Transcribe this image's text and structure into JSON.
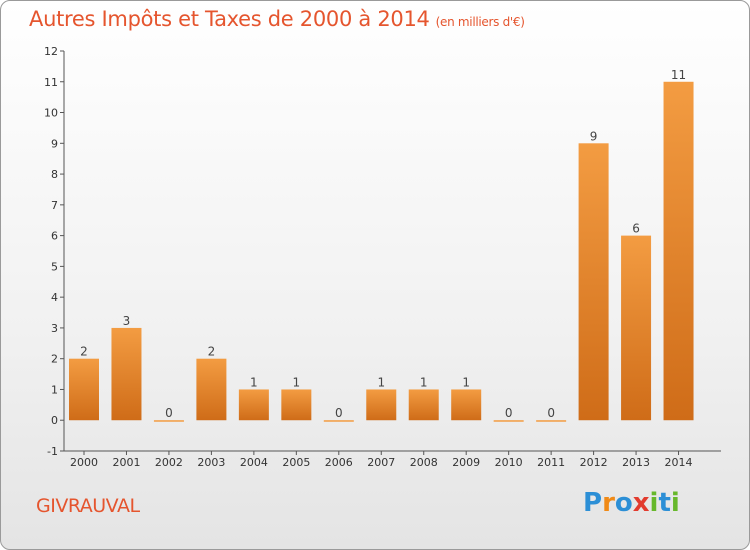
{
  "header": {
    "title": "Autres Impôts et Taxes de 2000 à 2014",
    "unit": "(en milliers d'€)"
  },
  "commune": "GIVRAUVAL",
  "logo": {
    "letters": [
      "P",
      "r",
      "o",
      "x",
      "i",
      "t",
      "i"
    ],
    "colors": [
      "#2c8fd6",
      "#f08a17",
      "#2c8fd6",
      "#e23b2e",
      "#67b82b",
      "#2c8fd6",
      "#67b82b"
    ]
  },
  "chart_data": {
    "type": "bar",
    "title": "Autres Impôts et Taxes de 2000 à 2014",
    "subtitle": "(en milliers d'€)",
    "categories": [
      "2000",
      "2001",
      "2002",
      "2003",
      "2004",
      "2005",
      "2006",
      "2007",
      "2008",
      "2009",
      "2010",
      "2011",
      "2012",
      "2013",
      "2014"
    ],
    "values": [
      2,
      3,
      0,
      2,
      1,
      1,
      0,
      1,
      1,
      1,
      0,
      0,
      9,
      6,
      11
    ],
    "ylim": [
      -1,
      12
    ],
    "yticks": [
      -1,
      0,
      1,
      2,
      3,
      4,
      5,
      6,
      7,
      8,
      9,
      10,
      11,
      12
    ],
    "grid": false,
    "bar_color": "#f39c42",
    "bar_color_dark": "#cf6c18"
  }
}
